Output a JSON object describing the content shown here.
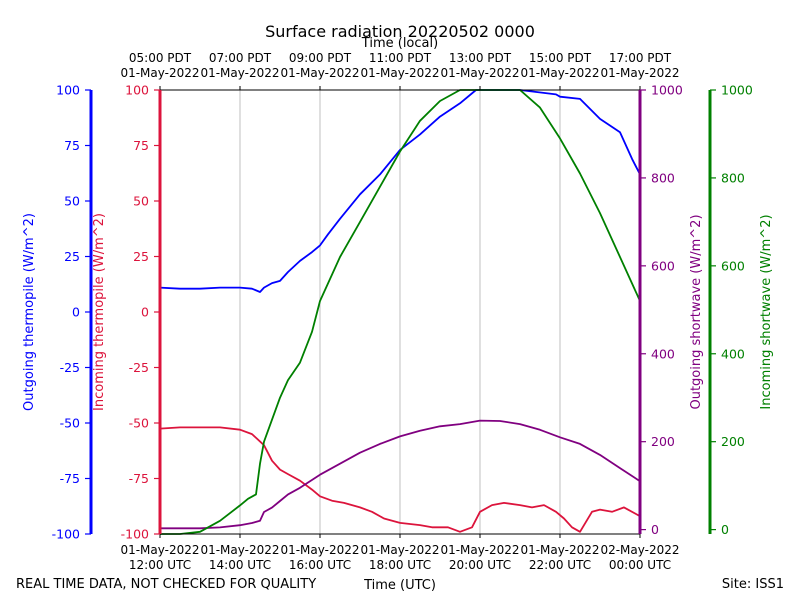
{
  "chart_data": {
    "type": "line",
    "title": "Surface radiation 20220502 0000",
    "top_axis_title": "Time (local)",
    "bottom_axis_title": "Time (UTC)",
    "footer_left": "REAL TIME DATA, NOT CHECKED FOR QUALITY",
    "footer_right": "Site: ISS1",
    "x_range_hours": [
      12,
      24
    ],
    "top_ticks": [
      {
        "hour": 12,
        "line1": "05:00 PDT",
        "line2": "01-May-2022"
      },
      {
        "hour": 14,
        "line1": "07:00 PDT",
        "line2": "01-May-2022"
      },
      {
        "hour": 16,
        "line1": "09:00 PDT",
        "line2": "01-May-2022"
      },
      {
        "hour": 18,
        "line1": "11:00 PDT",
        "line2": "01-May-2022"
      },
      {
        "hour": 20,
        "line1": "13:00 PDT",
        "line2": "01-May-2022"
      },
      {
        "hour": 22,
        "line1": "15:00 PDT",
        "line2": "01-May-2022"
      },
      {
        "hour": 24,
        "line1": "17:00 PDT",
        "line2": "01-May-2022"
      }
    ],
    "bottom_ticks": [
      {
        "hour": 12,
        "line1": "01-May-2022",
        "line2": "12:00 UTC"
      },
      {
        "hour": 14,
        "line1": "01-May-2022",
        "line2": "14:00 UTC"
      },
      {
        "hour": 16,
        "line1": "01-May-2022",
        "line2": "16:00 UTC"
      },
      {
        "hour": 18,
        "line1": "01-May-2022",
        "line2": "18:00 UTC"
      },
      {
        "hour": 20,
        "line1": "01-May-2022",
        "line2": "20:00 UTC"
      },
      {
        "hour": 22,
        "line1": "01-May-2022",
        "line2": "22:00 UTC"
      },
      {
        "hour": 24,
        "line1": "02-May-2022",
        "line2": "00:00 UTC"
      }
    ],
    "axes": [
      {
        "id": "out_thermo",
        "label": "Outgoing thermopile (W/m^2)",
        "color": "#0000ff",
        "side": "left",
        "ylim": [
          -100,
          100
        ],
        "ticks": [
          -100,
          -75,
          -50,
          -25,
          0,
          25,
          50,
          75,
          100
        ]
      },
      {
        "id": "in_thermo",
        "label": "Incoming thermopile (W/m^2)",
        "color": "#dc143c",
        "side": "left",
        "ylim": [
          -100,
          100
        ],
        "ticks": [
          -100,
          -75,
          -50,
          -25,
          0,
          25,
          50,
          75,
          100
        ]
      },
      {
        "id": "out_sw",
        "label": "Outgoing shortwave (W/m^2)",
        "color": "#800080",
        "side": "right",
        "ylim": [
          -10,
          1000
        ],
        "ticks": [
          0,
          200,
          400,
          600,
          800,
          1000
        ]
      },
      {
        "id": "in_sw",
        "label": "Incoming shortwave (W/m^2)",
        "color": "#008000",
        "side": "right",
        "ylim": [
          -10,
          1000
        ],
        "ticks": [
          0,
          200,
          400,
          600,
          800,
          1000
        ]
      }
    ],
    "series": [
      {
        "name": "Outgoing thermopile",
        "axis": "out_thermo",
        "color": "#0000ff",
        "x": [
          12,
          12.5,
          13,
          13.5,
          14,
          14.3,
          14.5,
          14.6,
          14.8,
          15,
          15.2,
          15.5,
          15.8,
          16,
          16.2,
          16.5,
          17,
          17.5,
          18,
          18.5,
          19,
          19.5,
          19.9,
          21,
          21.9,
          22,
          22.5,
          23,
          23.5,
          23.8,
          24
        ],
        "y": [
          11,
          10.5,
          10.5,
          11,
          11,
          10.5,
          9,
          11,
          13,
          14,
          18,
          23,
          27,
          30,
          35,
          42,
          53,
          62,
          73,
          80,
          88,
          94,
          100,
          100,
          98,
          97,
          96,
          87,
          81,
          69,
          62
        ]
      },
      {
        "name": "Incoming thermopile",
        "axis": "in_thermo",
        "color": "#dc143c",
        "x": [
          12,
          12.5,
          13,
          13.5,
          14,
          14.3,
          14.6,
          14.8,
          15,
          15.2,
          15.5,
          15.8,
          16,
          16.3,
          16.6,
          17,
          17.3,
          17.6,
          18,
          18.5,
          18.8,
          19.2,
          19.5,
          19.8,
          20,
          20.3,
          20.6,
          21,
          21.3,
          21.6,
          21.9,
          22.1,
          22.3,
          22.5,
          22.8,
          23,
          23.3,
          23.6,
          23.9,
          24
        ],
        "y": [
          -52.5,
          -52,
          -52,
          -52,
          -53,
          -55,
          -60,
          -67,
          -71,
          -73,
          -76,
          -80,
          -83,
          -85,
          -86,
          -88,
          -90,
          -93,
          -95,
          -96,
          -97,
          -97,
          -99,
          -97,
          -90,
          -87,
          -86,
          -87,
          -88,
          -87,
          -90,
          -93,
          -97,
          -99,
          -90,
          -89,
          -90,
          -88,
          -91,
          -92
        ]
      },
      {
        "name": "Outgoing shortwave",
        "axis": "out_sw",
        "color": "#800080",
        "x": [
          12,
          12.5,
          13,
          13.5,
          14,
          14.3,
          14.5,
          14.6,
          14.8,
          15,
          15.2,
          15.5,
          16,
          16.5,
          17,
          17.5,
          18,
          18.5,
          19,
          19.5,
          20,
          20.5,
          21,
          21.5,
          22,
          22.5,
          23,
          23.5,
          24
        ],
        "y": [
          3,
          3,
          3,
          5,
          10,
          15,
          20,
          40,
          50,
          65,
          80,
          95,
          125,
          150,
          175,
          195,
          212,
          225,
          235,
          240,
          248,
          247,
          240,
          227,
          210,
          195,
          170,
          140,
          110
        ]
      },
      {
        "name": "Incoming shortwave",
        "axis": "in_sw",
        "color": "#008000",
        "x": [
          12,
          12.5,
          13,
          13.5,
          14,
          14.2,
          14.4,
          14.5,
          14.6,
          14.8,
          15,
          15.2,
          15.5,
          15.8,
          16,
          16.3,
          16.5,
          17,
          17.5,
          18,
          18.5,
          19,
          19.5,
          19.9,
          21,
          21.5,
          22,
          22.5,
          23,
          23.5,
          24
        ],
        "y": [
          -10,
          -10,
          -5,
          20,
          55,
          70,
          80,
          150,
          200,
          250,
          300,
          340,
          380,
          450,
          520,
          580,
          620,
          700,
          780,
          860,
          930,
          975,
          1000,
          1000,
          1000,
          960,
          890,
          810,
          720,
          620,
          520
        ]
      }
    ]
  }
}
